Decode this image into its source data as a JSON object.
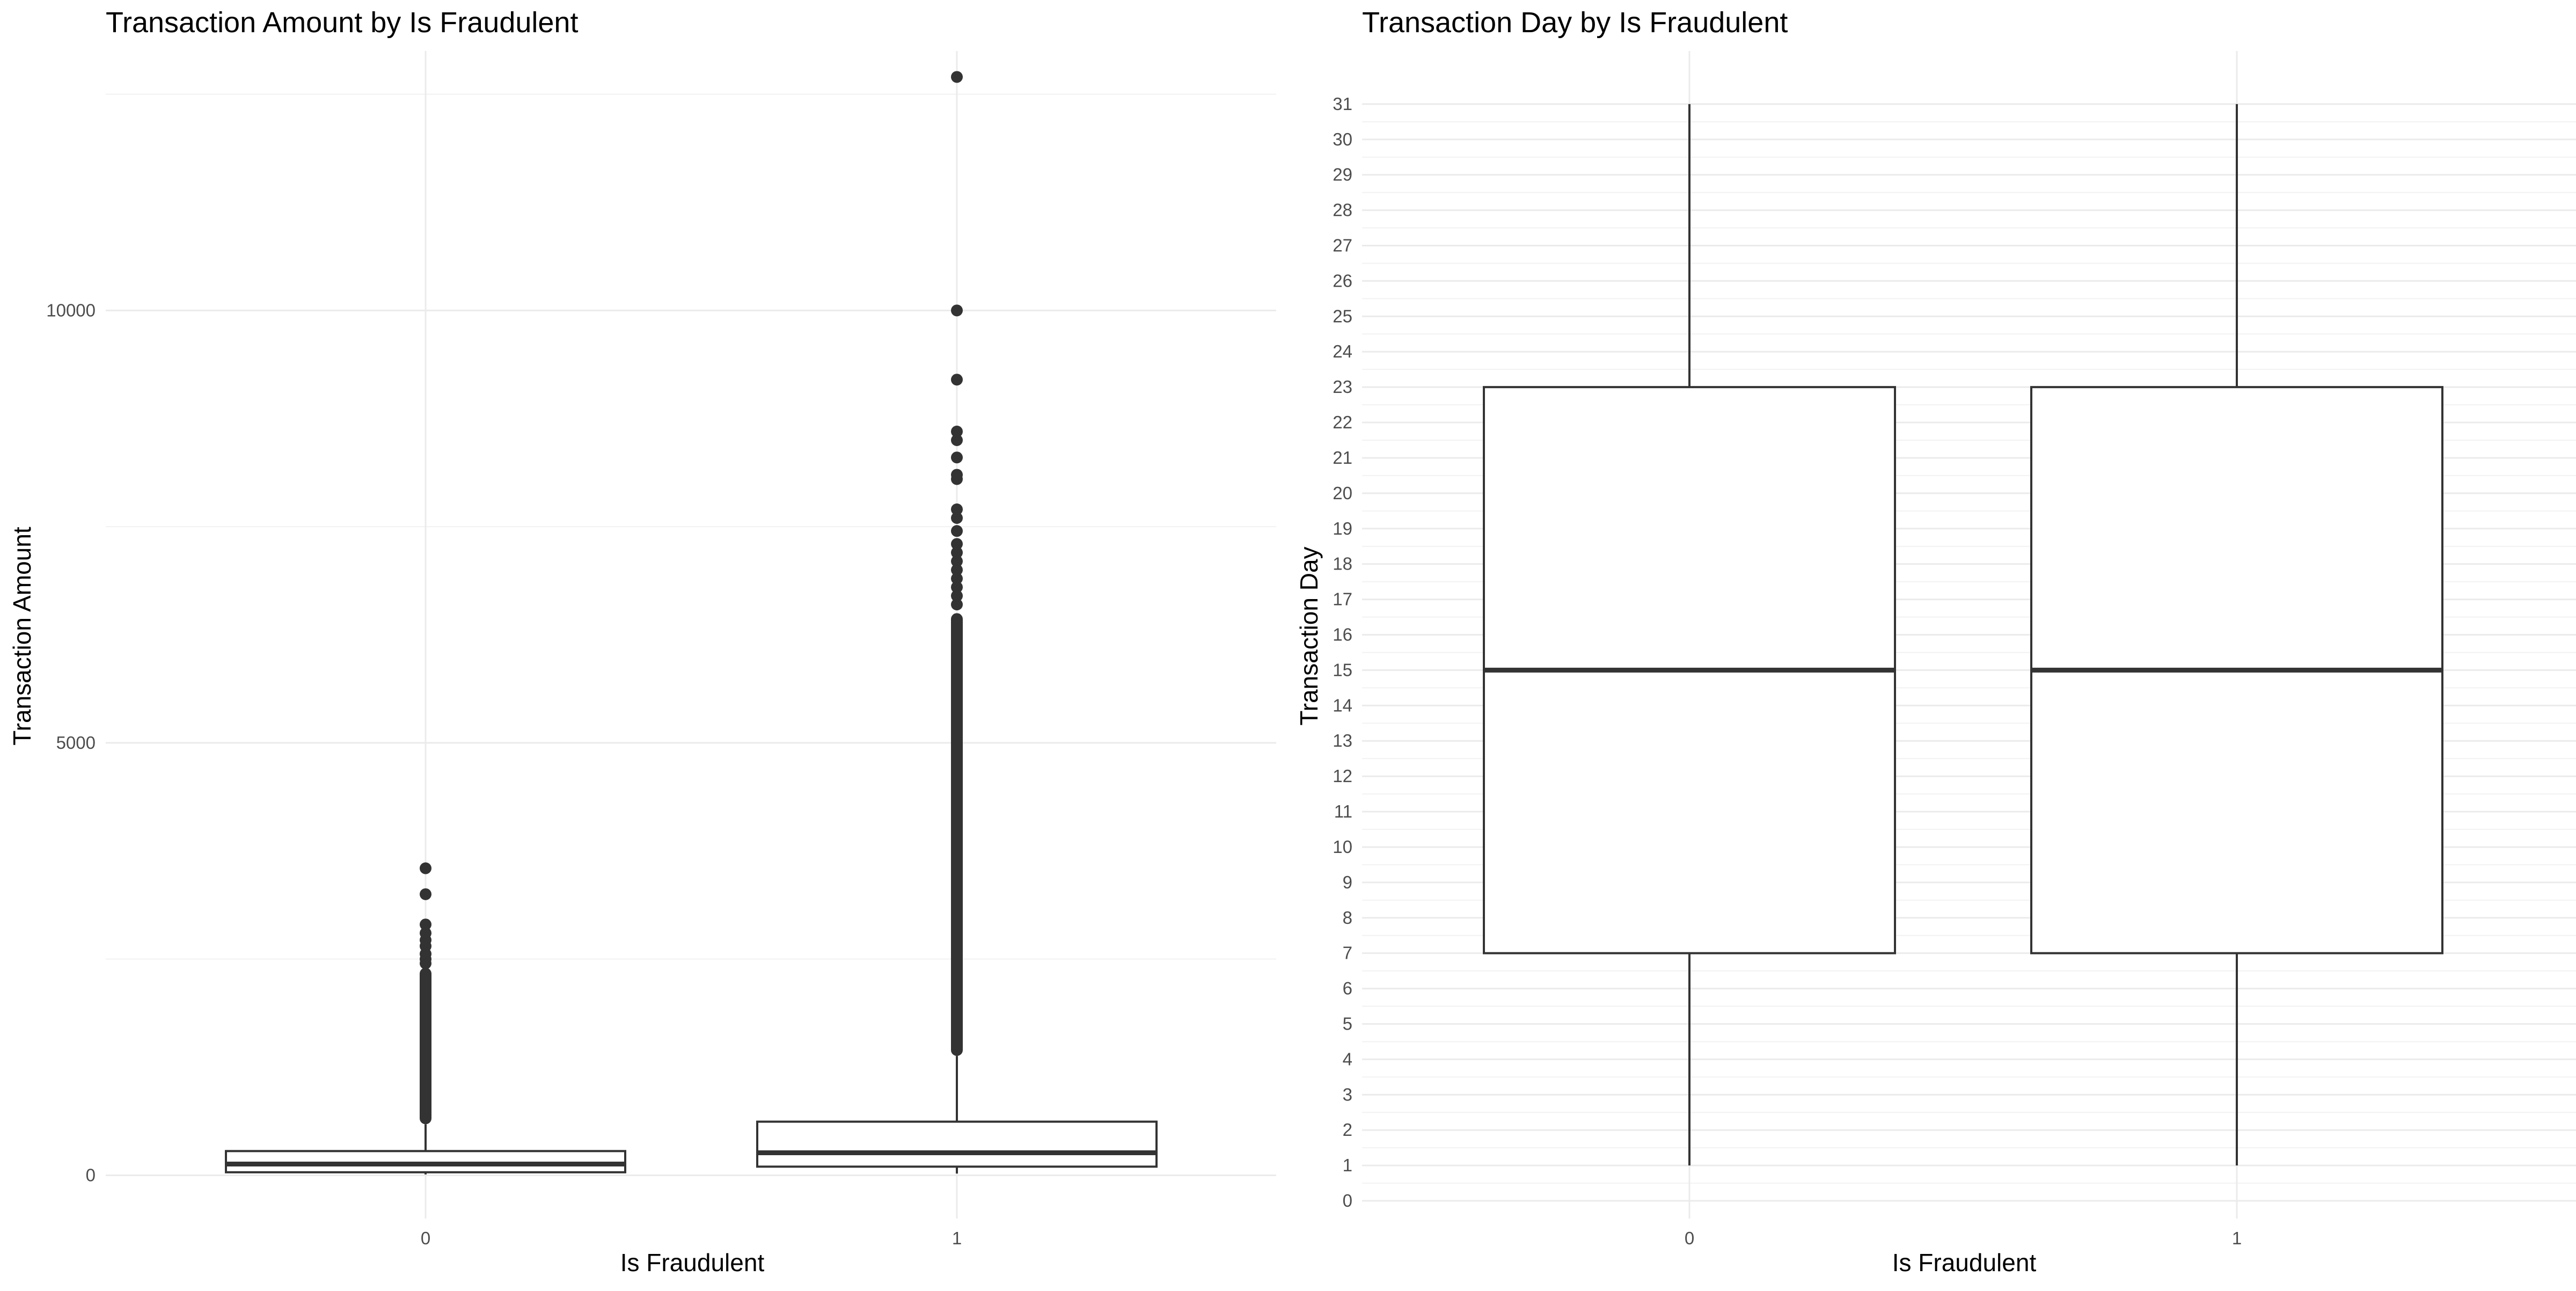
{
  "chart_data": [
    {
      "type": "box",
      "title": "Transaction Amount by Is Fraudulent",
      "xlabel": "Is Fraudulent",
      "ylabel": "Transaction Amount",
      "categories": [
        "0",
        "1"
      ],
      "ylim": [
        -500,
        13000
      ],
      "yticks": [
        0,
        5000,
        10000
      ],
      "ytick_labels": [
        "0",
        "5000",
        "10000"
      ],
      "y_minor_ticks": [
        2500,
        7500,
        12500
      ],
      "grid": true,
      "boxes": [
        {
          "category": "0",
          "whisker_low": 10,
          "q1": 35,
          "median": 130,
          "q3": 280,
          "whisker_high": 590,
          "outlier_range": [
            590,
            2400
          ],
          "outliers": [
            2450,
            2500,
            2560,
            2650,
            2720,
            2800,
            2900,
            3250,
            3550
          ]
        },
        {
          "category": "1",
          "whisker_low": 20,
          "q1": 100,
          "median": 260,
          "q3": 620,
          "whisker_high": 1380,
          "outlier_range": [
            1380,
            6500
          ],
          "outliers": [
            6600,
            6700,
            6800,
            6900,
            7000,
            7100,
            7200,
            7300,
            7450,
            7600,
            7700,
            8050,
            8100,
            8300,
            8500,
            8600,
            9200,
            10000,
            12700
          ]
        }
      ]
    },
    {
      "type": "box",
      "title": "Transaction Day by Is Fraudulent",
      "xlabel": "Is Fraudulent",
      "ylabel": "Transaction Day",
      "categories": [
        "0",
        "1"
      ],
      "ylim": [
        -0.5,
        32.5
      ],
      "yticks": [
        0,
        1,
        2,
        3,
        4,
        5,
        6,
        7,
        8,
        9,
        10,
        11,
        12,
        13,
        14,
        15,
        16,
        17,
        18,
        19,
        20,
        21,
        22,
        23,
        24,
        25,
        26,
        27,
        28,
        29,
        30,
        31
      ],
      "ytick_labels": [
        "0",
        "1",
        "2",
        "3",
        "4",
        "5",
        "6",
        "7",
        "8",
        "9",
        "10",
        "11",
        "12",
        "13",
        "14",
        "15",
        "16",
        "17",
        "18",
        "19",
        "20",
        "21",
        "22",
        "23",
        "24",
        "25",
        "26",
        "27",
        "28",
        "29",
        "30",
        "31"
      ],
      "grid": true,
      "boxes": [
        {
          "category": "0",
          "whisker_low": 1,
          "q1": 7,
          "median": 15,
          "q3": 23,
          "whisker_high": 31,
          "outliers": []
        },
        {
          "category": "1",
          "whisker_low": 1,
          "q1": 7,
          "median": 15,
          "q3": 23,
          "whisker_high": 31,
          "outliers": []
        }
      ]
    }
  ]
}
